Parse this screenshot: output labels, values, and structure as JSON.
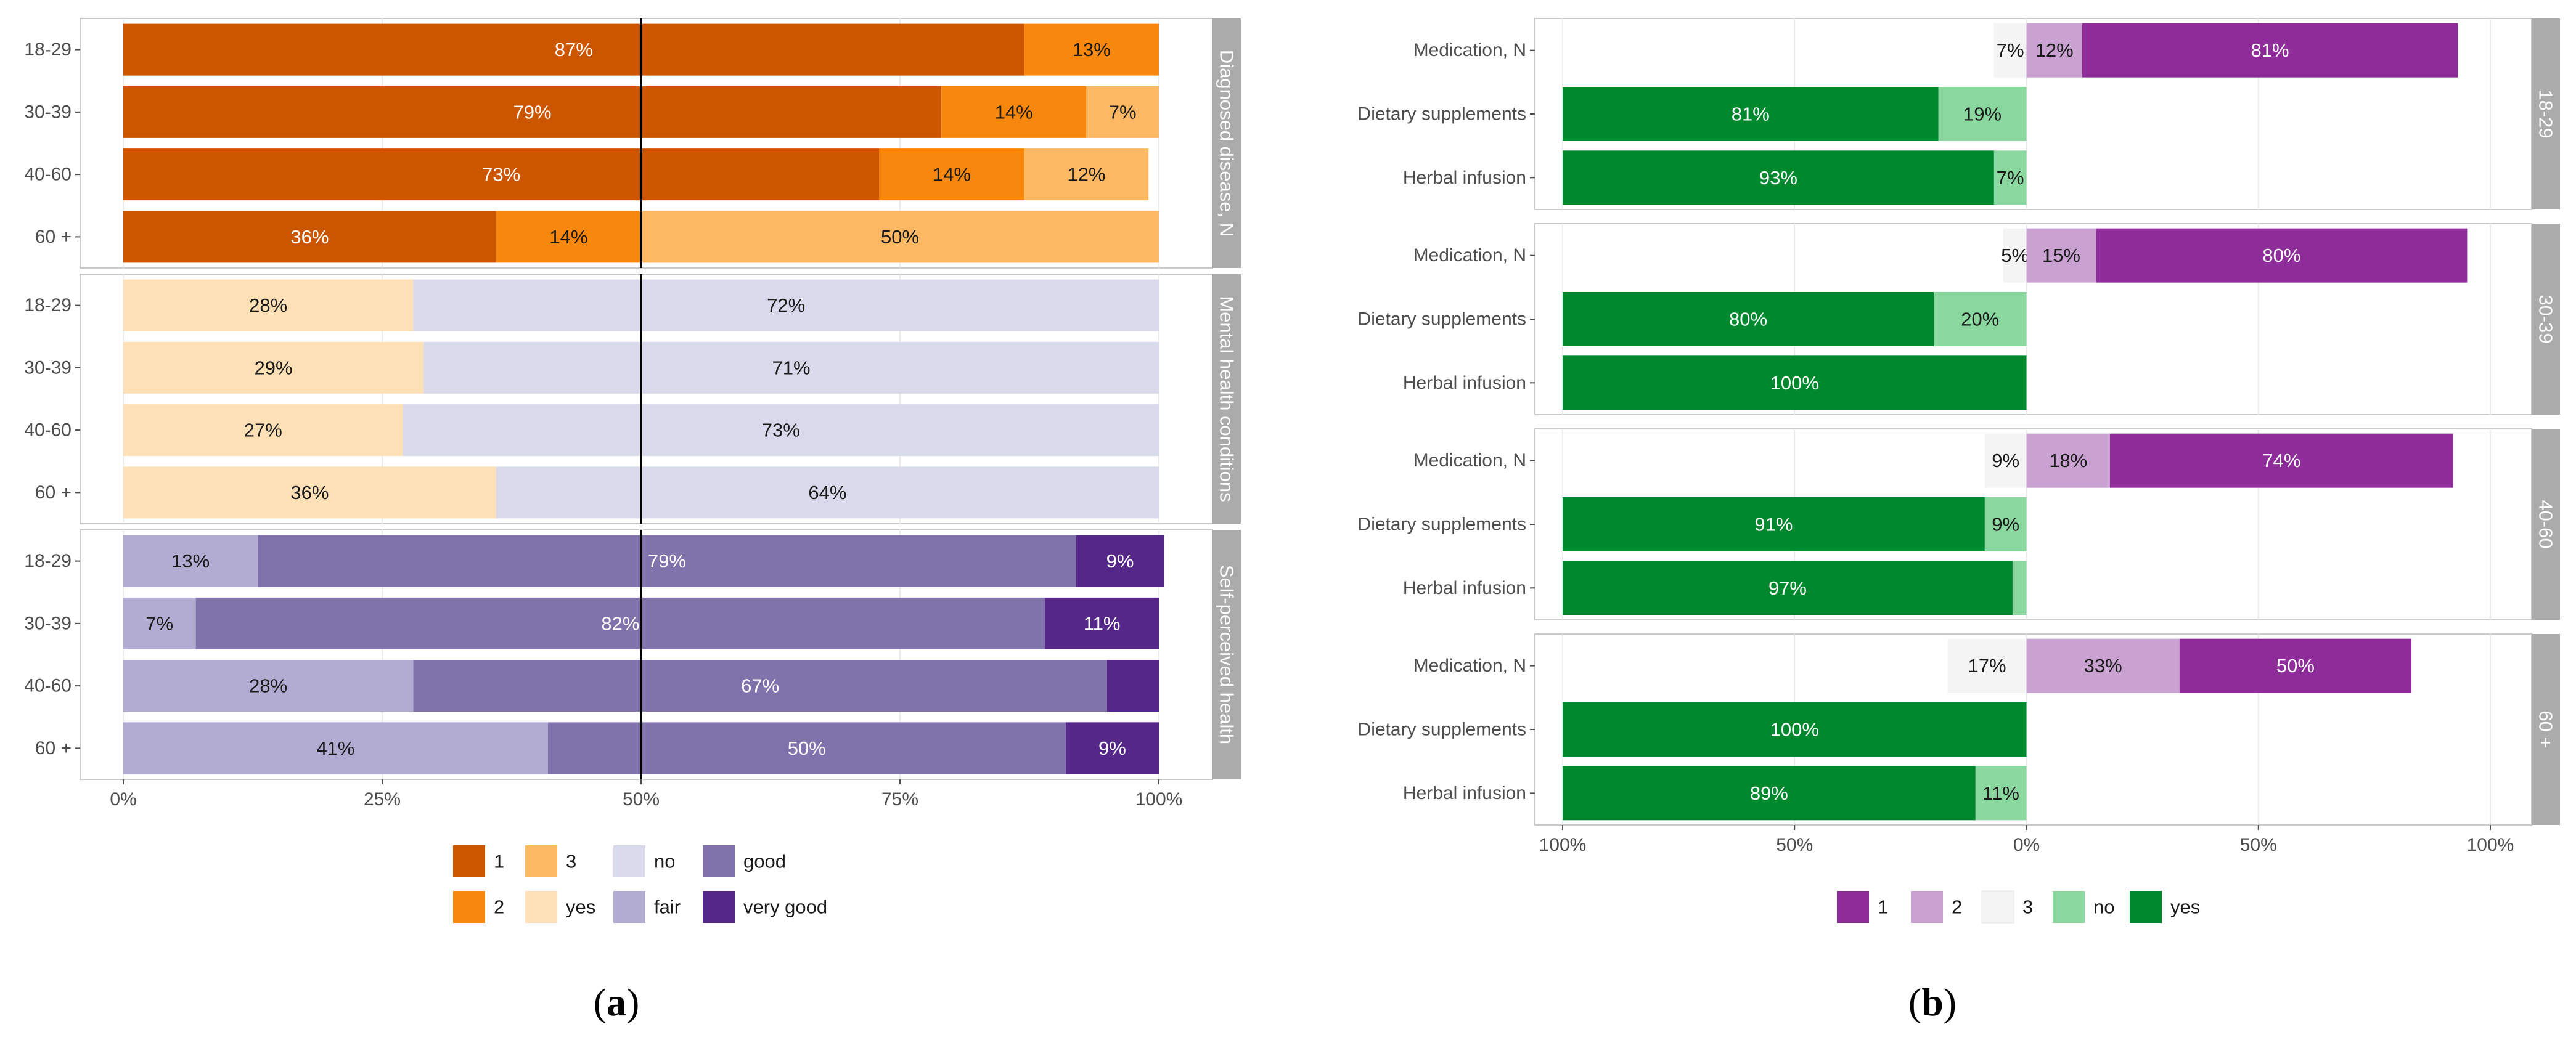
{
  "chart_data": [
    {
      "type": "bar",
      "orientation": "horizontal",
      "stacked": true,
      "caption": {
        "open": "(",
        "letter": "a",
        "close": ")"
      },
      "x_ticks": [
        "0%",
        "25%",
        "50%",
        "75%",
        "100%"
      ],
      "xlim": [
        0,
        100
      ],
      "reference_line": 50,
      "categories": [
        "18-29",
        "30-39",
        "40-60",
        "60 +"
      ],
      "colors": {
        "1": "#cc5500",
        "2": "#f8870e",
        "3": "#fdb863",
        "yes": "#fee0b6",
        "no": "#d8daeb",
        "fair": "#b2abd2",
        "good": "#8073ac",
        "very good": "#542788"
      },
      "legend": {
        "position": "bottom",
        "items": [
          {
            "key": "1",
            "label": "1"
          },
          {
            "key": "2",
            "label": "2"
          },
          {
            "key": "3",
            "label": "3"
          },
          {
            "key": "yes",
            "label": "yes"
          },
          {
            "key": "no",
            "label": "no"
          },
          {
            "key": "fair",
            "label": "fair"
          },
          {
            "key": "good",
            "label": "good"
          },
          {
            "key": "very good",
            "label": "very good"
          }
        ]
      },
      "panels": [
        {
          "strip": "Diagnosed disease, N",
          "rows": [
            {
              "label": "18-29",
              "segments": [
                {
                  "key": "1",
                  "value": 87,
                  "label": "87%"
                },
                {
                  "key": "2",
                  "value": 13,
                  "label": "13%"
                }
              ]
            },
            {
              "label": "30-39",
              "segments": [
                {
                  "key": "1",
                  "value": 79,
                  "label": "79%"
                },
                {
                  "key": "2",
                  "value": 14,
                  "label": "14%"
                },
                {
                  "key": "3",
                  "value": 7,
                  "label": "7%"
                }
              ]
            },
            {
              "label": "40-60",
              "segments": [
                {
                  "key": "1",
                  "value": 73,
                  "label": "73%"
                },
                {
                  "key": "2",
                  "value": 14,
                  "label": "14%"
                },
                {
                  "key": "3",
                  "value": 12,
                  "label": "12%"
                }
              ]
            },
            {
              "label": "60 +",
              "segments": [
                {
                  "key": "1",
                  "value": 36,
                  "label": "36%"
                },
                {
                  "key": "2",
                  "value": 14,
                  "label": "14%"
                },
                {
                  "key": "3",
                  "value": 50,
                  "label": "50%"
                }
              ]
            }
          ]
        },
        {
          "strip": "Mental health conditions",
          "rows": [
            {
              "label": "18-29",
              "segments": [
                {
                  "key": "yes",
                  "value": 28,
                  "label": "28%"
                },
                {
                  "key": "no",
                  "value": 72,
                  "label": "72%"
                }
              ]
            },
            {
              "label": "30-39",
              "segments": [
                {
                  "key": "yes",
                  "value": 29,
                  "label": "29%"
                },
                {
                  "key": "no",
                  "value": 71,
                  "label": "71%"
                }
              ]
            },
            {
              "label": "40-60",
              "segments": [
                {
                  "key": "yes",
                  "value": 27,
                  "label": "27%"
                },
                {
                  "key": "no",
                  "value": 73,
                  "label": "73%"
                }
              ]
            },
            {
              "label": "60 +",
              "segments": [
                {
                  "key": "yes",
                  "value": 36,
                  "label": "36%"
                },
                {
                  "key": "no",
                  "value": 64,
                  "label": "64%"
                }
              ]
            }
          ]
        },
        {
          "strip": "Self-perceived health",
          "rows": [
            {
              "label": "18-29",
              "segments": [
                {
                  "key": "fair",
                  "value": 13,
                  "label": "13%"
                },
                {
                  "key": "good",
                  "value": 79,
                  "label": "79%"
                },
                {
                  "key": "very good",
                  "value": 8.5,
                  "label": "9%"
                }
              ]
            },
            {
              "label": "30-39",
              "segments": [
                {
                  "key": "fair",
                  "value": 7,
                  "label": "7%"
                },
                {
                  "key": "good",
                  "value": 82,
                  "label": "82%"
                },
                {
                  "key": "very good",
                  "value": 11,
                  "label": "11%"
                }
              ]
            },
            {
              "label": "40-60",
              "segments": [
                {
                  "key": "fair",
                  "value": 28,
                  "label": "28%"
                },
                {
                  "key": "good",
                  "value": 67,
                  "label": "67%"
                },
                {
                  "key": "very good",
                  "value": 5,
                  "label": ""
                }
              ]
            },
            {
              "label": "60 +",
              "segments": [
                {
                  "key": "fair",
                  "value": 41,
                  "label": "41%"
                },
                {
                  "key": "good",
                  "value": 50,
                  "label": "50%"
                },
                {
                  "key": "very good",
                  "value": 9,
                  "label": "9%"
                }
              ]
            }
          ]
        }
      ]
    },
    {
      "type": "bar",
      "orientation": "horizontal",
      "stacked": true,
      "diverging": true,
      "caption": {
        "open": "(",
        "letter": "b",
        "close": ")"
      },
      "x_ticks": [
        "100%",
        "50%",
        "0%",
        "50%",
        "100%"
      ],
      "x_tick_values": [
        -100,
        -50,
        0,
        50,
        100
      ],
      "xlim": [
        -100,
        100
      ],
      "categories": [
        "Medication, N",
        "Dietary supplements",
        "Herbal infusion"
      ],
      "colors": {
        "1": "#8e2d9a",
        "2": "#c9a2d2",
        "3": "#f4f4f4",
        "no": "#8ad8a0",
        "yes": "#00882f"
      },
      "legend": {
        "position": "bottom",
        "items": [
          {
            "key": "1",
            "label": "1"
          },
          {
            "key": "2",
            "label": "2"
          },
          {
            "key": "3",
            "label": "3"
          },
          {
            "key": "no",
            "label": "no"
          },
          {
            "key": "yes",
            "label": "yes"
          }
        ]
      },
      "panels": [
        {
          "strip": "18-29",
          "rows": [
            {
              "label": "Medication, N",
              "neg": [
                {
                  "key": "3",
                  "value": 7,
                  "label": "7%"
                }
              ],
              "pos": [
                {
                  "key": "2",
                  "value": 12,
                  "label": "12%"
                },
                {
                  "key": "1",
                  "value": 81,
                  "label": "81%"
                }
              ]
            },
            {
              "label": "Dietary supplements",
              "neg": [
                {
                  "key": "no",
                  "value": 19,
                  "label": "19%"
                },
                {
                  "key": "yes",
                  "value": 81,
                  "label": "81%"
                }
              ],
              "pos": []
            },
            {
              "label": "Herbal infusion",
              "neg": [
                {
                  "key": "no",
                  "value": 7,
                  "label": "7%"
                },
                {
                  "key": "yes",
                  "value": 93,
                  "label": "93%"
                }
              ],
              "pos": []
            }
          ]
        },
        {
          "strip": "30-39",
          "rows": [
            {
              "label": "Medication, N",
              "neg": [
                {
                  "key": "3",
                  "value": 5,
                  "label": "5%"
                }
              ],
              "pos": [
                {
                  "key": "2",
                  "value": 15,
                  "label": "15%"
                },
                {
                  "key": "1",
                  "value": 80,
                  "label": "80%"
                }
              ]
            },
            {
              "label": "Dietary supplements",
              "neg": [
                {
                  "key": "no",
                  "value": 20,
                  "label": "20%"
                },
                {
                  "key": "yes",
                  "value": 80,
                  "label": "80%"
                }
              ],
              "pos": []
            },
            {
              "label": "Herbal infusion",
              "neg": [
                {
                  "key": "yes",
                  "value": 100,
                  "label": "100%"
                }
              ],
              "pos": []
            }
          ]
        },
        {
          "strip": "40-60",
          "rows": [
            {
              "label": "Medication, N",
              "neg": [
                {
                  "key": "3",
                  "value": 9,
                  "label": "9%"
                }
              ],
              "pos": [
                {
                  "key": "2",
                  "value": 18,
                  "label": "18%"
                },
                {
                  "key": "1",
                  "value": 74,
                  "label": "74%"
                }
              ]
            },
            {
              "label": "Dietary supplements",
              "neg": [
                {
                  "key": "no",
                  "value": 9,
                  "label": "9%"
                },
                {
                  "key": "yes",
                  "value": 91,
                  "label": "91%"
                }
              ],
              "pos": []
            },
            {
              "label": "Herbal infusion",
              "neg": [
                {
                  "key": "no",
                  "value": 3,
                  "label": ""
                },
                {
                  "key": "yes",
                  "value": 97,
                  "label": "97%"
                }
              ],
              "pos": []
            }
          ]
        },
        {
          "strip": "60 +",
          "rows": [
            {
              "label": "Medication, N",
              "neg": [
                {
                  "key": "3",
                  "value": 17,
                  "label": "17%"
                }
              ],
              "pos": [
                {
                  "key": "2",
                  "value": 33,
                  "label": "33%"
                },
                {
                  "key": "1",
                  "value": 50,
                  "label": "50%"
                }
              ]
            },
            {
              "label": "Dietary supplements",
              "neg": [
                {
                  "key": "yes",
                  "value": 100,
                  "label": "100%"
                }
              ],
              "pos": []
            },
            {
              "label": "Herbal infusion",
              "neg": [
                {
                  "key": "no",
                  "value": 11,
                  "label": "11%"
                },
                {
                  "key": "yes",
                  "value": 89,
                  "label": "89%"
                }
              ],
              "pos": []
            }
          ]
        }
      ]
    }
  ]
}
